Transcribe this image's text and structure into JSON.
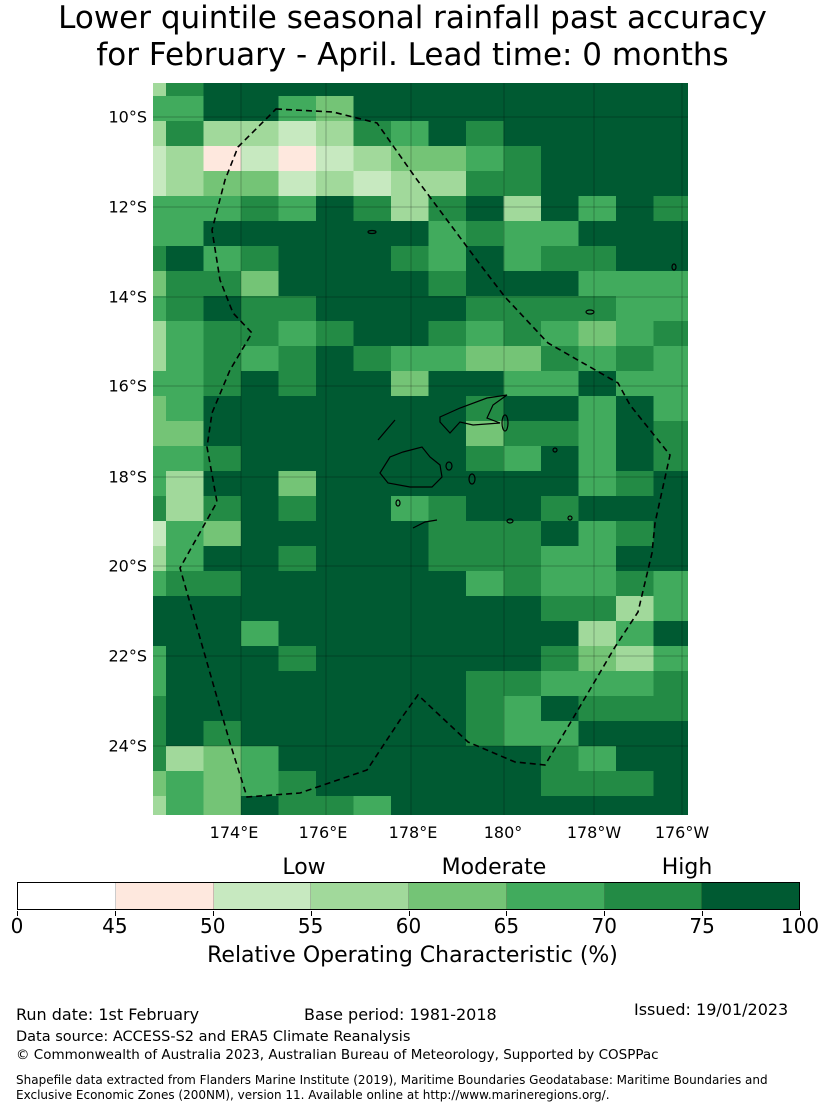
{
  "title": {
    "line1": "Lower quintile seasonal rainfall past accuracy",
    "line2": "for February - April. Lead time: 0 months"
  },
  "map": {
    "lat_labels": [
      "10°S",
      "12°S",
      "14°S",
      "16°S",
      "18°S",
      "20°S",
      "22°S",
      "24°S"
    ],
    "lon_labels": [
      "174°E",
      "176°E",
      "178°E",
      "180°",
      "178°W",
      "176°W"
    ],
    "category_grid_note": "bin index per cell (0:<45,1:45-50,2:50-55,3:55-60,4:60-65,5:65-70,6:70-75,7:75-100), rows north to south, columns west to east",
    "category_grid": [
      "367777777777777",
      "557754777777777",
      "363323657677777",
      "231212344567777",
      "234423233667777",
      "555657636737576",
      "557777775655777",
      "675677765756677",
      "466477776777555",
      "567667777666655",
      "356656776565456",
      "356567655446565",
      "556767747755755",
      "457777777677575",
      "447777777466576",
      "556777777657576",
      "537747777777567",
      "636767756776777",
      "254777776667567",
      "357767776665577",
      "566777777565565",
      "777777777776635",
      "777577777777357",
      "577767777776435",
      "577777777665556",
      "677777777657666",
      "676777777655777",
      "634577777776577",
      "454567777776667",
      "354766577777777"
    ]
  },
  "legend": {
    "categories": [
      "Low",
      "Moderate",
      "High"
    ],
    "ticks": [
      "0",
      "45",
      "50",
      "55",
      "60",
      "65",
      "70",
      "75",
      "100"
    ],
    "colors": [
      "#ffffff",
      "#fee8de",
      "#c7e9c0",
      "#a1d99b",
      "#74c476",
      "#41ab5d",
      "#238b45",
      "#005a32"
    ],
    "label": "Relative Operating Characteristic (%)"
  },
  "footer": {
    "run_date": "Run date: 1st February",
    "base_period": "Base period: 1981-2018",
    "issued": "Issued: 19/01/2023",
    "data_source": "Data source: ACCESS-S2 and ERA5 Climate Reanalysis",
    "copyright": "© Commonwealth of Australia 2023, Australian Bureau of Meteorology, Supported by COSPPac",
    "shapefile_line1": "Shapefile data extracted from Flanders Marine Institute (2019), Maritime Boundaries Geodatabase: Maritime Boundaries and",
    "shapefile_line2": "Exclusive Economic Zones (200NM), version 11. Available online at http://www.marineregions.org/."
  }
}
